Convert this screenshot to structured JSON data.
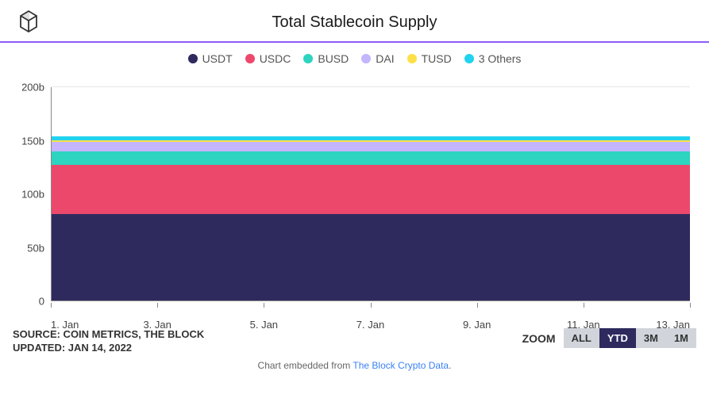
{
  "header": {
    "title": "Total Stablecoin Supply"
  },
  "chart": {
    "type": "stacked-area",
    "watermark": "THE BLOCK",
    "background_color": "#ffffff",
    "grid_color": "#e5e5e5",
    "axis_color": "#888888",
    "y_axis": {
      "min": 0,
      "max": 200,
      "unit_suffix": "b",
      "ticks": [
        0,
        50,
        100,
        150,
        200
      ]
    },
    "x_axis": {
      "labels": [
        "1. Jan",
        "3. Jan",
        "5. Jan",
        "7. Jan",
        "9. Jan",
        "11. Jan",
        "13. Jan"
      ]
    },
    "legend": [
      {
        "label": "USDT",
        "color": "#2e2a5e"
      },
      {
        "label": "USDC",
        "color": "#ec486c"
      },
      {
        "label": "BUSD",
        "color": "#2dd4bf"
      },
      {
        "label": "DAI",
        "color": "#c4b5fd"
      },
      {
        "label": "TUSD",
        "color": "#fde047"
      },
      {
        "label": "3 Others",
        "color": "#22d3ee"
      }
    ],
    "series": [
      {
        "name": "USDT",
        "color": "#2e2a5e",
        "value_start": 80,
        "value_end": 82
      },
      {
        "name": "USDC",
        "color": "#ec486c",
        "value_start": 46,
        "value_end": 46
      },
      {
        "name": "BUSD",
        "color": "#2dd4bf",
        "value_start": 13,
        "value_end": 13
      },
      {
        "name": "DAI",
        "color": "#c4b5fd",
        "value_start": 9,
        "value_end": 9
      },
      {
        "name": "TUSD",
        "color": "#fde047",
        "value_start": 1,
        "value_end": 1
      },
      {
        "name": "3 Others",
        "color": "#22d3ee",
        "value_start": 4,
        "value_end": 4
      }
    ]
  },
  "footer": {
    "source_line1": "SOURCE: COIN METRICS, THE BLOCK",
    "source_line2": "UPDATED: JAN 14, 2022",
    "zoom_label": "ZOOM",
    "zoom_options": [
      {
        "label": "ALL",
        "active": false
      },
      {
        "label": "YTD",
        "active": true
      },
      {
        "label": "3M",
        "active": false
      },
      {
        "label": "1M",
        "active": false
      }
    ],
    "embed_prefix": "Chart embedded from ",
    "embed_link_text": "The Block Crypto Data",
    "embed_suffix": "."
  }
}
